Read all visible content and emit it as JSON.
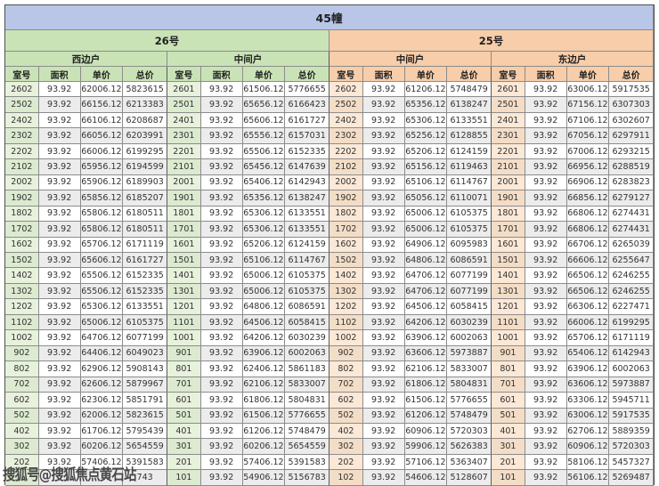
{
  "page": {
    "banner": "45幢",
    "watermark": "搜狐号@搜狐焦点黄石站"
  },
  "colors": {
    "banner_bg": "#b9c6e7",
    "green_header": "#c9e3b6",
    "green_room_cell": "#e7f1dc",
    "orange_header": "#f7cdaa",
    "orange_room_cell": "#fbe8d6",
    "row_stripe": "#ececec",
    "grid_border": "#8c8c8c"
  },
  "table": {
    "column_headers": [
      "室号",
      "面积",
      "单价",
      "总价"
    ],
    "buildings": [
      {
        "label": "26号",
        "theme": "green"
      },
      {
        "label": "25号",
        "theme": "orange"
      }
    ],
    "sections": [
      {
        "building": "26号",
        "name": "西边户",
        "theme": "green",
        "rows": [
          [
            "2602",
            "93.92",
            "62006.12",
            "5823615"
          ],
          [
            "2502",
            "93.92",
            "66156.12",
            "6213383"
          ],
          [
            "2402",
            "93.92",
            "66106.12",
            "6208687"
          ],
          [
            "2302",
            "93.92",
            "66056.12",
            "6203991"
          ],
          [
            "2202",
            "93.92",
            "66006.12",
            "6199295"
          ],
          [
            "2102",
            "93.92",
            "65956.12",
            "6194599"
          ],
          [
            "2002",
            "93.92",
            "65906.12",
            "6189903"
          ],
          [
            "1902",
            "93.92",
            "65856.12",
            "6185207"
          ],
          [
            "1802",
            "93.92",
            "65806.12",
            "6180511"
          ],
          [
            "1702",
            "93.92",
            "65806.12",
            "6180511"
          ],
          [
            "1602",
            "93.92",
            "65706.12",
            "6171119"
          ],
          [
            "1502",
            "93.92",
            "65606.12",
            "6161727"
          ],
          [
            "1402",
            "93.92",
            "65506.12",
            "6152335"
          ],
          [
            "1302",
            "93.92",
            "65506.12",
            "6152335"
          ],
          [
            "1202",
            "93.92",
            "65306.12",
            "6133551"
          ],
          [
            "1102",
            "93.92",
            "65006.12",
            "6105375"
          ],
          [
            "1002",
            "93.92",
            "64706.12",
            "6077199"
          ],
          [
            "902",
            "93.92",
            "64406.12",
            "6049023"
          ],
          [
            "802",
            "93.92",
            "62906.12",
            "5908143"
          ],
          [
            "702",
            "93.92",
            "62606.12",
            "5879967"
          ],
          [
            "602",
            "93.92",
            "62306.12",
            "5851791"
          ],
          [
            "502",
            "93.92",
            "62006.12",
            "5823615"
          ],
          [
            "402",
            "93.92",
            "61706.12",
            "5795439"
          ],
          [
            "302",
            "93.92",
            "60206.12",
            "5654559"
          ],
          [
            "202",
            "93.92",
            "57406.12",
            "5391583"
          ],
          [
            "",
            "",
            "",
            "743"
          ]
        ]
      },
      {
        "building": "26号",
        "name": "中间户",
        "theme": "green",
        "rows": [
          [
            "2601",
            "93.92",
            "61506.12",
            "5776655"
          ],
          [
            "2501",
            "93.92",
            "65656.12",
            "6166423"
          ],
          [
            "2401",
            "93.92",
            "65606.12",
            "6161727"
          ],
          [
            "2301",
            "93.92",
            "65556.12",
            "6157031"
          ],
          [
            "2201",
            "93.92",
            "65506.12",
            "6152335"
          ],
          [
            "2101",
            "93.92",
            "65456.12",
            "6147639"
          ],
          [
            "2001",
            "93.92",
            "65406.12",
            "6142943"
          ],
          [
            "1901",
            "93.92",
            "65356.12",
            "6138247"
          ],
          [
            "1801",
            "93.92",
            "65306.12",
            "6133551"
          ],
          [
            "1701",
            "93.92",
            "65306.12",
            "6133551"
          ],
          [
            "1601",
            "93.92",
            "65206.12",
            "6124159"
          ],
          [
            "1501",
            "93.92",
            "65106.12",
            "6114767"
          ],
          [
            "1401",
            "93.92",
            "65006.12",
            "6105375"
          ],
          [
            "1301",
            "93.92",
            "65006.12",
            "6105375"
          ],
          [
            "1201",
            "93.92",
            "64806.12",
            "6086591"
          ],
          [
            "1101",
            "93.92",
            "64506.12",
            "6058415"
          ],
          [
            "1001",
            "93.92",
            "64206.12",
            "6030239"
          ],
          [
            "901",
            "93.92",
            "63906.12",
            "6002063"
          ],
          [
            "801",
            "93.92",
            "62406.12",
            "5861183"
          ],
          [
            "701",
            "93.92",
            "62106.12",
            "5833007"
          ],
          [
            "601",
            "93.92",
            "61806.12",
            "5804831"
          ],
          [
            "501",
            "93.92",
            "61506.12",
            "5776655"
          ],
          [
            "401",
            "93.92",
            "61206.12",
            "5748479"
          ],
          [
            "301",
            "93.92",
            "60206.12",
            "5654559"
          ],
          [
            "201",
            "93.92",
            "57406.12",
            "5391583"
          ],
          [
            "101",
            "93.92",
            "54906.12",
            "5156783"
          ]
        ]
      },
      {
        "building": "25号",
        "name": "中间户",
        "theme": "orange",
        "rows": [
          [
            "2602",
            "93.92",
            "61206.12",
            "5748479"
          ],
          [
            "2502",
            "93.92",
            "65356.12",
            "6138247"
          ],
          [
            "2402",
            "93.92",
            "65306.12",
            "6133551"
          ],
          [
            "2302",
            "93.92",
            "65256.12",
            "6128855"
          ],
          [
            "2202",
            "93.92",
            "65206.12",
            "6124159"
          ],
          [
            "2102",
            "93.92",
            "65156.12",
            "6119463"
          ],
          [
            "2002",
            "93.92",
            "65106.12",
            "6114767"
          ],
          [
            "1902",
            "93.92",
            "65056.12",
            "6110071"
          ],
          [
            "1802",
            "93.92",
            "65006.12",
            "6105375"
          ],
          [
            "1702",
            "93.92",
            "65006.12",
            "6105375"
          ],
          [
            "1602",
            "93.92",
            "64906.12",
            "6095983"
          ],
          [
            "1502",
            "93.92",
            "64806.12",
            "6086591"
          ],
          [
            "1402",
            "93.92",
            "64706.12",
            "6077199"
          ],
          [
            "1302",
            "93.92",
            "64706.12",
            "6077199"
          ],
          [
            "1202",
            "93.92",
            "64506.12",
            "6058415"
          ],
          [
            "1102",
            "93.92",
            "64206.12",
            "6030239"
          ],
          [
            "1002",
            "93.92",
            "63906.12",
            "6002063"
          ],
          [
            "902",
            "93.92",
            "63606.12",
            "5973887"
          ],
          [
            "802",
            "93.92",
            "62106.12",
            "5833007"
          ],
          [
            "702",
            "93.92",
            "61806.12",
            "5804831"
          ],
          [
            "602",
            "93.92",
            "61506.12",
            "5776655"
          ],
          [
            "502",
            "93.92",
            "61206.12",
            "5748479"
          ],
          [
            "402",
            "93.92",
            "60906.12",
            "5720303"
          ],
          [
            "302",
            "93.92",
            "59906.12",
            "5626383"
          ],
          [
            "202",
            "93.92",
            "57106.12",
            "5363407"
          ],
          [
            "102",
            "93.92",
            "54606.12",
            "5128607"
          ]
        ]
      },
      {
        "building": "25号",
        "name": "东边户",
        "theme": "orange",
        "rows": [
          [
            "2601",
            "93.92",
            "63006.12",
            "5917535"
          ],
          [
            "2501",
            "93.92",
            "67156.12",
            "6307303"
          ],
          [
            "2401",
            "93.92",
            "67106.12",
            "6302607"
          ],
          [
            "2301",
            "93.92",
            "67056.12",
            "6297911"
          ],
          [
            "2201",
            "93.92",
            "67006.12",
            "6293215"
          ],
          [
            "2101",
            "93.92",
            "66956.12",
            "6288519"
          ],
          [
            "2001",
            "93.92",
            "66906.12",
            "6283823"
          ],
          [
            "1901",
            "93.92",
            "66856.12",
            "6279127"
          ],
          [
            "1801",
            "93.92",
            "66806.12",
            "6274431"
          ],
          [
            "1701",
            "93.92",
            "66806.12",
            "6274431"
          ],
          [
            "1601",
            "93.92",
            "66706.12",
            "6265039"
          ],
          [
            "1501",
            "93.92",
            "66606.12",
            "6255647"
          ],
          [
            "1401",
            "93.92",
            "66506.12",
            "6246255"
          ],
          [
            "1301",
            "93.92",
            "66506.12",
            "6246255"
          ],
          [
            "1201",
            "93.92",
            "66306.12",
            "6227471"
          ],
          [
            "1101",
            "93.92",
            "66006.12",
            "6199295"
          ],
          [
            "1001",
            "93.92",
            "65706.12",
            "6171119"
          ],
          [
            "901",
            "93.92",
            "65406.12",
            "6142943"
          ],
          [
            "801",
            "93.92",
            "63906.12",
            "6002063"
          ],
          [
            "701",
            "93.92",
            "63606.12",
            "5973887"
          ],
          [
            "601",
            "93.92",
            "63306.12",
            "5945711"
          ],
          [
            "501",
            "93.92",
            "63006.12",
            "5917535"
          ],
          [
            "401",
            "93.92",
            "62706.12",
            "5889359"
          ],
          [
            "301",
            "93.92",
            "60906.12",
            "5720303"
          ],
          [
            "201",
            "93.92",
            "58106.12",
            "5457327"
          ],
          [
            "101",
            "93.92",
            "56106.12",
            "5269487"
          ]
        ]
      }
    ]
  }
}
